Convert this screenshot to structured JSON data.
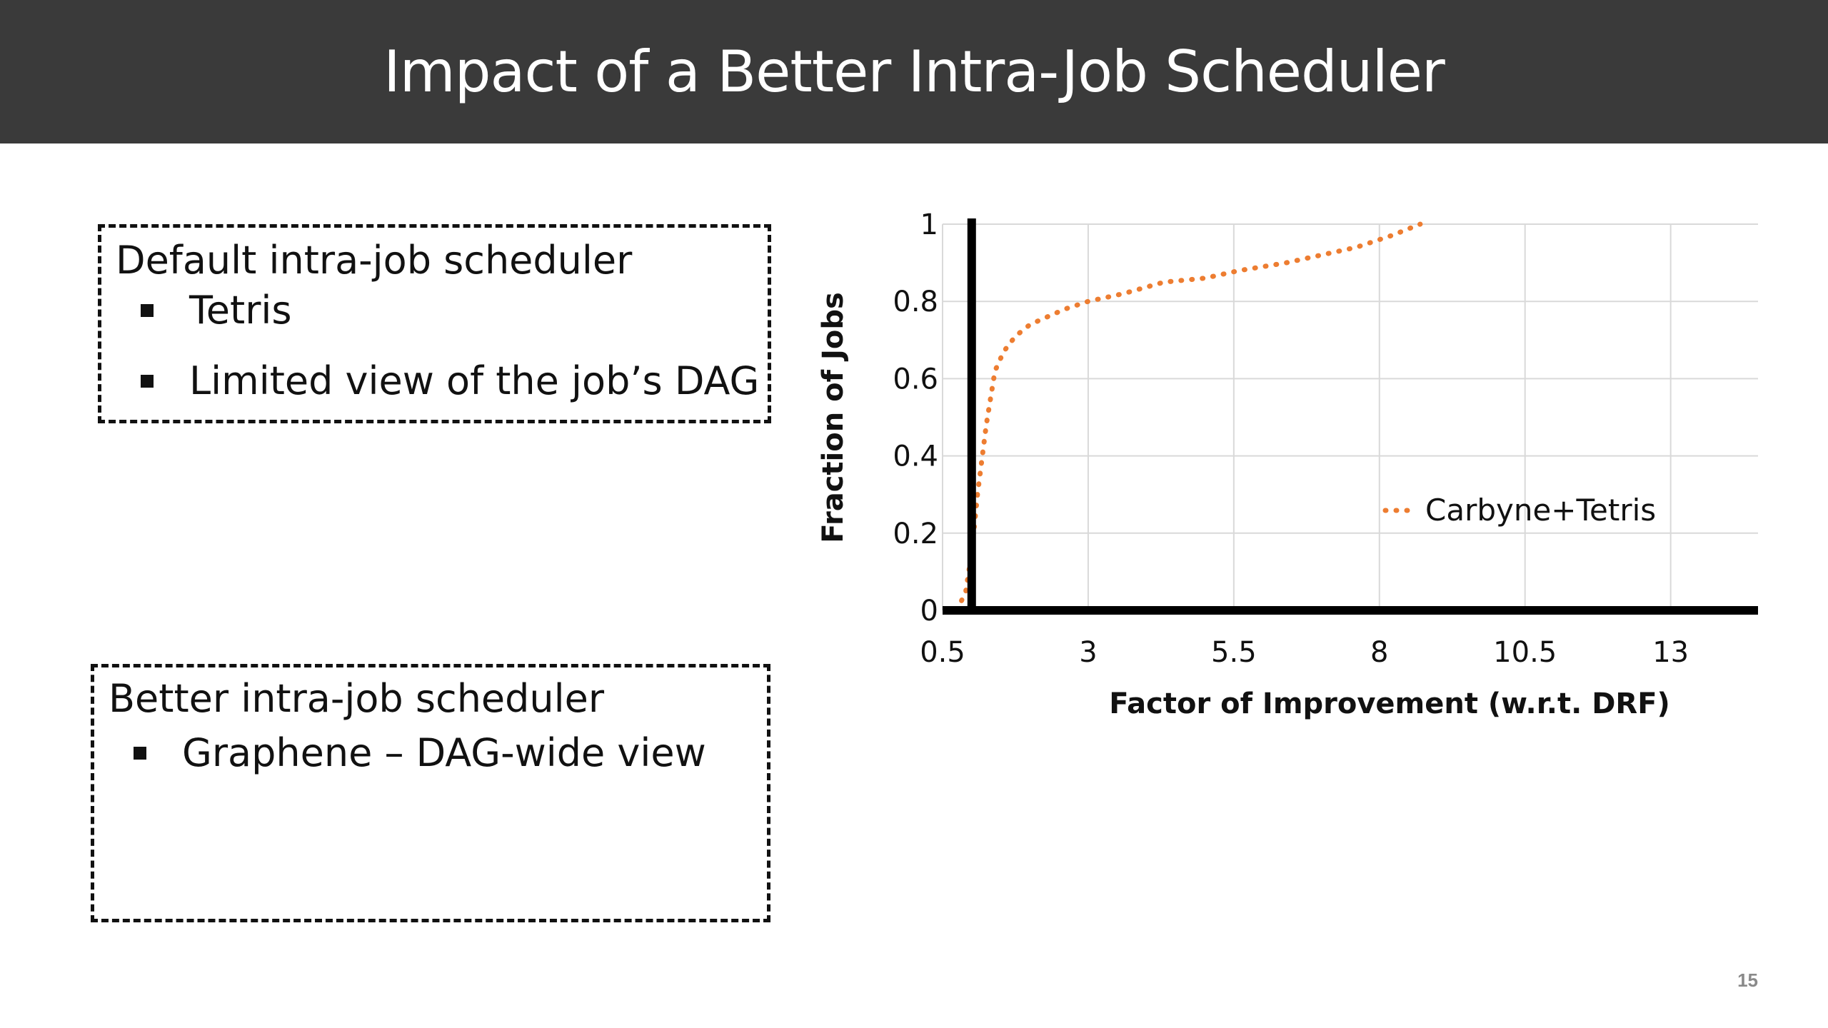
{
  "slide": {
    "title": "Impact of a Better Intra-Job Scheduler",
    "page_number": "15"
  },
  "box_default": {
    "heading": "Default intra-job scheduler",
    "bullets": [
      "Tetris",
      "Limited view of the job’s DAG"
    ]
  },
  "box_better": {
    "heading": "Better intra-job scheduler",
    "bullets": [
      "Graphene – DAG-wide view"
    ]
  },
  "chart_data": {
    "type": "line",
    "xlabel": "Factor of Improvement (w.r.t. DRF)",
    "ylabel": "Fraction of Jobs",
    "xlim": [
      0.5,
      14.5
    ],
    "ylim": [
      0,
      1
    ],
    "x_ticks": [
      0.5,
      3,
      5.5,
      8,
      10.5,
      13
    ],
    "x_tick_labels": [
      "0.5",
      "3",
      "5.5",
      "8",
      "10.5",
      "13"
    ],
    "y_ticks": [
      0,
      0.2,
      0.4,
      0.6,
      0.8,
      1
    ],
    "y_tick_labels": [
      "0",
      "0.2",
      "0.4",
      "0.6",
      "0.8",
      "1"
    ],
    "grid": true,
    "legend": "right",
    "reference_line_x": 1,
    "series": [
      {
        "name": "Carbyne+Tetris",
        "color": "#ED7D31",
        "style": "dotted",
        "x": [
          0.75,
          0.9,
          1.0,
          1.1,
          1.25,
          1.4,
          1.55,
          1.75,
          2.0,
          2.3,
          2.6,
          3.0,
          3.6,
          4.3,
          5.0,
          5.6,
          6.4,
          7.0,
          7.6,
          8.2,
          8.7
        ],
        "y": [
          0.0,
          0.05,
          0.15,
          0.3,
          0.48,
          0.62,
          0.67,
          0.71,
          0.74,
          0.76,
          0.78,
          0.8,
          0.82,
          0.85,
          0.86,
          0.88,
          0.9,
          0.92,
          0.94,
          0.97,
          1.0
        ]
      }
    ]
  }
}
